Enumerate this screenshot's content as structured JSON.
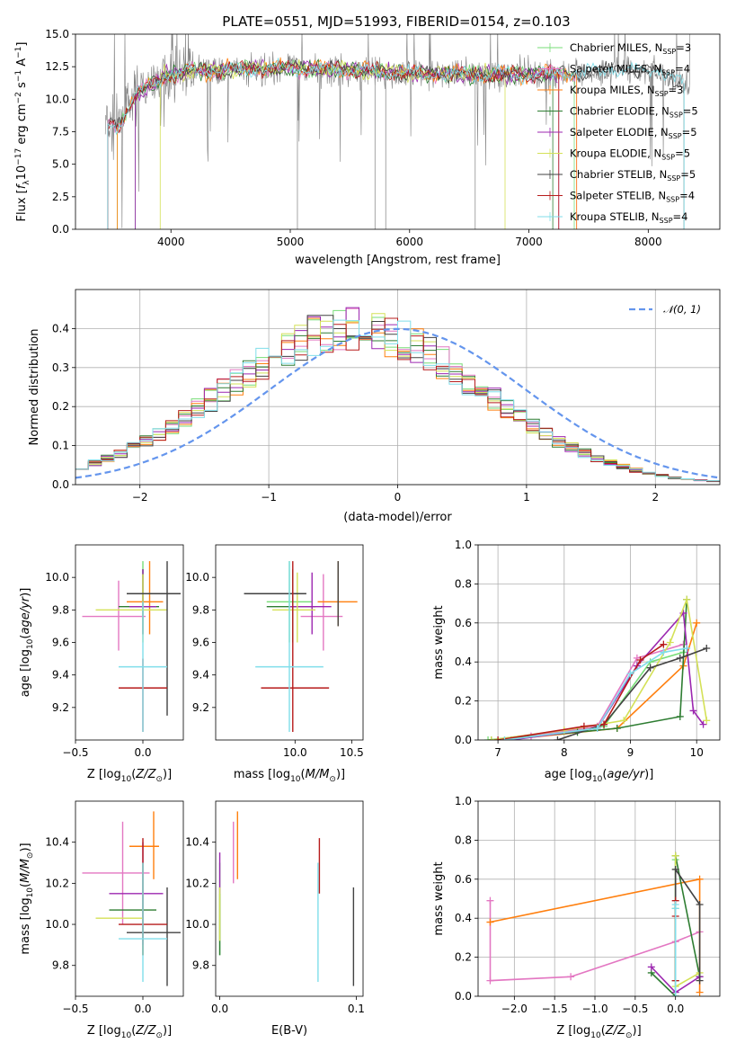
{
  "figure": {
    "title": "PLATE=0551, MJD=51993, FIBERID=0154, z=0.103"
  },
  "models": [
    {
      "label": "Chabrier MILES, N$_{SSP}$=3",
      "text": "Chabrier MILES, N",
      "sub": "SSP",
      "tail": "=3",
      "color": "#77dd77"
    },
    {
      "label": "Salpeter MILES, N$_{SSP}$=4",
      "text": "Salpeter MILES, N",
      "sub": "SSP",
      "tail": "=4",
      "color": "#e377c2"
    },
    {
      "label": "Kroupa MILES, N$_{SSP}$=3",
      "text": "Kroupa MILES, N",
      "sub": "SSP",
      "tail": "=3",
      "color": "#ff7f0e"
    },
    {
      "label": "Chabrier ELODIE, N$_{SSP}$=5",
      "text": "Chabrier ELODIE, N",
      "sub": "SSP",
      "tail": "=5",
      "color": "#2e7d32"
    },
    {
      "label": "Salpeter ELODIE, N$_{SSP}$=5",
      "text": "Salpeter ELODIE, N",
      "sub": "SSP",
      "tail": "=5",
      "color": "#9c27b0"
    },
    {
      "label": "Kroupa ELODIE, N$_{SSP}$=5",
      "text": "Kroupa ELODIE, N",
      "sub": "SSP",
      "tail": "=5",
      "color": "#d4e157"
    },
    {
      "label": "Chabrier STELIB, N$_{SSP}$=5",
      "text": "Chabrier STELIB, N",
      "sub": "SSP",
      "tail": "=5",
      "color": "#424242"
    },
    {
      "label": "Salpeter STELIB, N$_{SSP}$=4",
      "text": "Salpeter STELIB, N",
      "sub": "SSP",
      "tail": "=4",
      "color": "#b71c1c"
    },
    {
      "label": "Kroupa STELIB, N$_{SSP}$=4",
      "text": "Kroupa STELIB, N",
      "sub": "SSP",
      "tail": "=4",
      "color": "#80deea"
    }
  ],
  "chart_data": [
    {
      "id": "spectrum",
      "type": "line",
      "xlabel": "wavelength [Angstrom, rest frame]",
      "ylabel": "Flux [f$_\\lambda$10$^{-17}$ erg cm$^{-2}$ s$^{-1}$ A$^{-1}$]",
      "ylabel_parts": [
        "Flux [",
        "f",
        "λ",
        "10",
        "−17",
        " erg cm",
        "−2",
        " s",
        "−1",
        " A",
        "−1",
        "]"
      ],
      "xlim": [
        3200,
        8600
      ],
      "ylim": [
        0,
        15
      ],
      "xticks": [
        4000,
        5000,
        6000,
        7000,
        8000
      ],
      "yticks": [
        0.0,
        2.5,
        5.0,
        7.5,
        10.0,
        12.5,
        15.0
      ],
      "ytick_labels": [
        "0.0",
        "2.5",
        "5.0",
        "7.5",
        "10.0",
        "12.5",
        "15.0"
      ],
      "legend": "upper right",
      "grid": false,
      "data_color": "#808080",
      "data_x_range": [
        3450,
        8350
      ],
      "continuum": {
        "x": [
          3450,
          3550,
          3700,
          3950,
          4200,
          4600,
          5000,
          5600,
          6000,
          6500,
          7000,
          7400,
          7800,
          8100,
          8350
        ],
        "y": [
          8.2,
          7.8,
          10.3,
          11.8,
          12.2,
          12.3,
          12.4,
          12.2,
          12.0,
          11.9,
          11.9,
          12.0,
          12.3,
          12.1,
          11.0
        ]
      }
    },
    {
      "id": "residuals",
      "type": "histogram",
      "xlabel": "(data-model)/error",
      "ylabel": "Normed distribution",
      "xlim": [
        -2.5,
        2.5
      ],
      "ylim": [
        0,
        0.5
      ],
      "xticks": [
        -2,
        -1,
        0,
        1,
        2
      ],
      "xtick_labels": [
        "−2",
        "−1",
        "0",
        "1",
        "2"
      ],
      "yticks": [
        0.0,
        0.1,
        0.2,
        0.3,
        0.4
      ],
      "ytick_labels": [
        "0.0",
        "0.1",
        "0.2",
        "0.3",
        "0.4"
      ],
      "grid": true,
      "legend_label": "$\\mathcal{N}(0,1)$",
      "legend_text": "𝒩(0, 1)",
      "legend_color": "#6495ed",
      "bin_edges_start": -2.5,
      "bin_width": 0.1,
      "reference_values": [
        0.046,
        0.056,
        0.067,
        0.081,
        0.095,
        0.111,
        0.13,
        0.15,
        0.171,
        0.194,
        0.218,
        0.242,
        0.266,
        0.29,
        0.312,
        0.333,
        0.352,
        0.368,
        0.381,
        0.391,
        0.397,
        0.399,
        0.397,
        0.391,
        0.381,
        0.368,
        0.352,
        0.333,
        0.312,
        0.29,
        0.266,
        0.242,
        0.218,
        0.194,
        0.171,
        0.15,
        0.13,
        0.111,
        0.095,
        0.081,
        0.067,
        0.056,
        0.046,
        0.037,
        0.029,
        0.023,
        0.018,
        0.014,
        0.011,
        0.009
      ]
    },
    {
      "id": "age-vs-z",
      "type": "errorbar",
      "xlabel": "Z [log$_{10}$(Z/Z$_\\odot$)]",
      "xlabel_text": "Z [log",
      "ylabel": "age  [log$_{10}$(age/yr)]",
      "ylabel_text": "age  [log",
      "xlim": [
        -0.5,
        0.3
      ],
      "ylim": [
        9.0,
        10.2
      ],
      "xticks": [
        -0.5,
        0.0
      ],
      "xtick_labels": [
        "−0.5",
        "0.0"
      ],
      "yticks": [
        9.2,
        9.4,
        9.6,
        9.8,
        10.0
      ],
      "ytick_labels": [
        "9.2",
        "9.4",
        "9.6",
        "9.8",
        "10.0"
      ],
      "points": [
        {
          "model": 0,
          "x": 0.0,
          "y": 9.85,
          "xlo": 0.0,
          "xhi": 0.0,
          "ylo": 9.65,
          "yhi": 10.1
        },
        {
          "model": 1,
          "x": -0.18,
          "y": 9.76,
          "xlo": -0.45,
          "xhi": 0.02,
          "ylo": 9.55,
          "yhi": 9.98
        },
        {
          "model": 2,
          "x": 0.05,
          "y": 9.85,
          "xlo": -0.12,
          "xhi": 0.15,
          "ylo": 9.65,
          "yhi": 10.1
        },
        {
          "model": 3,
          "x": 0.0,
          "y": 9.82,
          "xlo": -0.18,
          "xhi": 0.12,
          "ylo": 9.65,
          "yhi": 10.05
        },
        {
          "model": 4,
          "x": 0.0,
          "y": 9.82,
          "xlo": -0.1,
          "xhi": 0.1,
          "ylo": 9.65,
          "yhi": 10.05
        },
        {
          "model": 5,
          "x": 0.0,
          "y": 9.8,
          "xlo": -0.35,
          "xhi": 0.18,
          "ylo": 9.6,
          "yhi": 10.02
        },
        {
          "model": 6,
          "x": 0.18,
          "y": 9.9,
          "xlo": -0.12,
          "xhi": 0.28,
          "ylo": 9.15,
          "yhi": 10.1
        },
        {
          "model": 7,
          "x": 0.0,
          "y": 9.32,
          "xlo": -0.18,
          "xhi": 0.18,
          "ylo": 9.05,
          "yhi": 9.5
        },
        {
          "model": 8,
          "x": 0.0,
          "y": 9.45,
          "xlo": -0.18,
          "xhi": 0.18,
          "ylo": 9.05,
          "yhi": 9.85
        }
      ]
    },
    {
      "id": "age-vs-mass",
      "type": "errorbar",
      "xlabel": "mass [log$_{10}$(M/M$_\\odot$)]",
      "xlabel_text": "mass [log",
      "xlim": [
        9.3,
        10.6
      ],
      "ylim": [
        9.0,
        10.2
      ],
      "xticks": [
        10.0,
        10.5
      ],
      "xtick_labels": [
        "10.0",
        "10.5"
      ],
      "yticks": [
        9.2,
        9.4,
        9.6,
        9.8,
        10.0
      ],
      "ytick_labels": [
        "9.2",
        "9.4",
        "9.6",
        "9.8",
        "10.0"
      ],
      "points": [
        {
          "model": 0,
          "x": 9.95,
          "y": 9.85,
          "xlo": 9.75,
          "xhi": 10.15,
          "ylo": 9.6,
          "yhi": 10.1
        },
        {
          "model": 1,
          "x": 10.25,
          "y": 9.76,
          "xlo": 10.05,
          "xhi": 10.42,
          "ylo": 9.55,
          "yhi": 10.02
        },
        {
          "model": 2,
          "x": 10.38,
          "y": 9.85,
          "xlo": 10.2,
          "xhi": 10.55,
          "ylo": 9.7,
          "yhi": 10.1
        },
        {
          "model": 3,
          "x": 9.98,
          "y": 9.82,
          "xlo": 9.75,
          "xhi": 10.18,
          "ylo": 9.6,
          "yhi": 10.05
        },
        {
          "model": 4,
          "x": 10.15,
          "y": 9.82,
          "xlo": 9.95,
          "xhi": 10.32,
          "ylo": 9.65,
          "yhi": 10.03
        },
        {
          "model": 5,
          "x": 10.02,
          "y": 9.8,
          "xlo": 9.8,
          "xhi": 10.18,
          "ylo": 9.6,
          "yhi": 10.03
        },
        {
          "model": 6,
          "x": 10.38,
          "y": 9.9,
          "xlo": 9.55,
          "xhi": 10.1,
          "ylo": 9.7,
          "yhi": 10.1
        },
        {
          "model": 7,
          "x": 9.98,
          "y": 9.32,
          "xlo": 9.7,
          "xhi": 10.3,
          "ylo": 9.05,
          "yhi": 10.1
        },
        {
          "model": 8,
          "x": 9.95,
          "y": 9.45,
          "xlo": 9.65,
          "xhi": 10.25,
          "ylo": 9.05,
          "yhi": 10.1
        }
      ]
    },
    {
      "id": "weight-vs-age",
      "type": "line",
      "xlabel": "age  [log$_{10}$(age/yr)]",
      "xlabel_text": "age  [log",
      "ylabel": "mass weight",
      "xlim": [
        6.7,
        10.35
      ],
      "ylim": [
        0,
        1.0
      ],
      "xticks": [
        7,
        8,
        9,
        10
      ],
      "xtick_labels": [
        "7",
        "8",
        "9",
        "10"
      ],
      "yticks": [
        0.0,
        0.2,
        0.4,
        0.6,
        0.8,
        1.0
      ],
      "ytick_labels": [
        "0.0",
        "0.2",
        "0.4",
        "0.6",
        "0.8",
        "1.0"
      ],
      "grid": true,
      "series": [
        {
          "model": 0,
          "x": [
            6.85,
            8.6,
            9.3,
            9.8
          ],
          "y": [
            0.0,
            0.07,
            0.4,
            0.45
          ]
        },
        {
          "model": 1,
          "x": [
            7.5,
            8.5,
            9.1,
            9.8
          ],
          "y": [
            0.02,
            0.07,
            0.42,
            0.49
          ]
        },
        {
          "model": 2,
          "x": [
            7.1,
            8.8,
            9.8,
            10.0
          ],
          "y": [
            0.0,
            0.06,
            0.38,
            0.6
          ]
        },
        {
          "model": 3,
          "x": [
            6.9,
            8.2,
            8.8,
            9.75,
            9.85
          ],
          "y": [
            0.0,
            0.04,
            0.06,
            0.12,
            0.72
          ]
        },
        {
          "model": 4,
          "x": [
            7.2,
            8.5,
            9.1,
            9.8,
            9.95,
            10.1
          ],
          "y": [
            0.0,
            0.06,
            0.38,
            0.65,
            0.15,
            0.08
          ]
        },
        {
          "model": 5,
          "x": [
            6.9,
            8.0,
            8.9,
            9.6,
            9.85,
            10.15
          ],
          "y": [
            0.0,
            0.05,
            0.1,
            0.5,
            0.72,
            0.1
          ]
        },
        {
          "model": 6,
          "x": [
            7.9,
            8.6,
            9.3,
            9.75,
            10.15
          ],
          "y": [
            0.0,
            0.08,
            0.37,
            0.42,
            0.47
          ]
        },
        {
          "model": 7,
          "x": [
            7.0,
            8.3,
            8.6,
            9.15,
            9.5
          ],
          "y": [
            0.0,
            0.07,
            0.08,
            0.41,
            0.49
          ]
        },
        {
          "model": 8,
          "x": [
            7.1,
            8.5,
            9.0,
            9.5,
            9.85
          ],
          "y": [
            0.0,
            0.06,
            0.34,
            0.45,
            0.47
          ]
        }
      ]
    },
    {
      "id": "mass-vs-z",
      "type": "errorbar",
      "xlabel": "Z [log$_{10}$(Z/Z$_\\odot$)]",
      "xlabel_text": "Z [log",
      "ylabel": "mass [log$_{10}$(M/M$_\\odot$)]",
      "ylabel_text": "mass [log",
      "xlim": [
        -0.5,
        0.3
      ],
      "ylim": [
        9.65,
        10.6
      ],
      "xticks": [
        -0.5,
        0.0
      ],
      "xtick_labels": [
        "−0.5",
        "0.0"
      ],
      "yticks": [
        9.8,
        10.0,
        10.2,
        10.4
      ],
      "ytick_labels": [
        "9.8",
        "10.0",
        "10.2",
        "10.4"
      ],
      "points": [
        {
          "model": 0,
          "x": 0.0,
          "y": 10.0,
          "xlo": 0.0,
          "xhi": 0.0,
          "ylo": 9.85,
          "yhi": 10.3
        },
        {
          "model": 1,
          "x": -0.15,
          "y": 10.25,
          "xlo": -0.45,
          "xhi": 0.05,
          "ylo": 10.0,
          "yhi": 10.5
        },
        {
          "model": 2,
          "x": 0.08,
          "y": 10.38,
          "xlo": -0.1,
          "xhi": 0.12,
          "ylo": 10.22,
          "yhi": 10.55
        },
        {
          "model": 3,
          "x": 0.0,
          "y": 10.07,
          "xlo": -0.25,
          "xhi": 0.1,
          "ylo": 9.85,
          "yhi": 10.3
        },
        {
          "model": 4,
          "x": 0.0,
          "y": 10.15,
          "xlo": -0.25,
          "xhi": 0.15,
          "ylo": 9.9,
          "yhi": 10.4
        },
        {
          "model": 5,
          "x": 0.0,
          "y": 10.03,
          "xlo": -0.35,
          "xhi": 0.0,
          "ylo": 9.85,
          "yhi": 10.3
        },
        {
          "model": 6,
          "x": 0.18,
          "y": 9.96,
          "xlo": -0.12,
          "xhi": 0.28,
          "ylo": 9.7,
          "yhi": 10.18
        },
        {
          "model": 7,
          "x": 0.0,
          "y": 10.0,
          "xlo": -0.18,
          "xhi": 0.18,
          "ylo": 9.85,
          "yhi": 10.42
        },
        {
          "model": 8,
          "x": 0.0,
          "y": 9.93,
          "xlo": -0.18,
          "xhi": 0.18,
          "ylo": 9.72,
          "yhi": 10.3
        }
      ]
    },
    {
      "id": "mass-vs-ebv",
      "type": "errorbar",
      "xlabel": "E(B-V)",
      "xlim": [
        -0.003,
        0.105
      ],
      "ylim": [
        9.65,
        10.6
      ],
      "xticks": [
        0.0,
        0.1
      ],
      "xtick_labels": [
        "0.0",
        "0.1"
      ],
      "yticks": [
        9.8,
        10.0,
        10.2,
        10.4
      ],
      "ytick_labels": [
        "9.8",
        "10.0",
        "10.2",
        "10.4"
      ],
      "points": [
        {
          "model": 0,
          "x": 0.0,
          "y": 10.0,
          "xlo": 0.0,
          "xhi": 0.0,
          "ylo": 9.85,
          "yhi": 10.3
        },
        {
          "model": 1,
          "x": 0.01,
          "y": 10.35,
          "xlo": 0.01,
          "xhi": 0.01,
          "ylo": 10.2,
          "yhi": 10.5
        },
        {
          "model": 2,
          "x": 0.013,
          "y": 10.38,
          "xlo": 0.013,
          "xhi": 0.013,
          "ylo": 10.22,
          "yhi": 10.55
        },
        {
          "model": 3,
          "x": 0.0,
          "y": 10.0,
          "xlo": 0.0,
          "xhi": 0.0,
          "ylo": 9.85,
          "yhi": 10.15
        },
        {
          "model": 4,
          "x": 0.0,
          "y": 10.25,
          "xlo": 0.0,
          "xhi": 0.0,
          "ylo": 10.15,
          "yhi": 10.35
        },
        {
          "model": 5,
          "x": 0.0,
          "y": 10.05,
          "xlo": 0.0,
          "xhi": 0.0,
          "ylo": 9.92,
          "yhi": 10.18
        },
        {
          "model": 6,
          "x": 0.098,
          "y": 9.95,
          "xlo": 0.098,
          "xhi": 0.098,
          "ylo": 9.7,
          "yhi": 10.18
        },
        {
          "model": 7,
          "x": 0.073,
          "y": 10.3,
          "xlo": 0.073,
          "xhi": 0.073,
          "ylo": 10.15,
          "yhi": 10.42
        },
        {
          "model": 8,
          "x": 0.072,
          "y": 10.0,
          "xlo": 0.072,
          "xhi": 0.072,
          "ylo": 9.72,
          "yhi": 10.3
        }
      ]
    },
    {
      "id": "weight-vs-z",
      "type": "line",
      "xlabel": "Z [log$_{10}$(Z/Z$_\\odot$)]",
      "xlabel_text": "Z [log",
      "ylabel": "mass weight",
      "xlim": [
        -2.45,
        0.55
      ],
      "ylim": [
        0,
        1.0
      ],
      "xticks": [
        -2.0,
        -1.5,
        -1.0,
        -0.5,
        0.0
      ],
      "xtick_labels": [
        "−2.0",
        "−1.5",
        "−1.0",
        "−0.5",
        "0.0"
      ],
      "yticks": [
        0.0,
        0.2,
        0.4,
        0.6,
        0.8,
        1.0
      ],
      "ytick_labels": [
        "0.0",
        "0.2",
        "0.4",
        "0.6",
        "0.8",
        "1.0"
      ],
      "grid": true,
      "series": [
        {
          "model": 0,
          "x": [
            0.0,
            0.0,
            0.0
          ],
          "y": [
            0.0,
            0.45,
            0.7
          ]
        },
        {
          "model": 1,
          "x": [
            -2.3,
            -2.3,
            -1.3,
            0.0,
            0.3
          ],
          "y": [
            0.49,
            0.08,
            0.1,
            0.28,
            0.33
          ]
        },
        {
          "model": 2,
          "x": [
            -2.3,
            0.3,
            0.3
          ],
          "y": [
            0.38,
            0.6,
            0.02
          ]
        },
        {
          "model": 3,
          "x": [
            -0.3,
            0.0,
            0.0,
            0.3
          ],
          "y": [
            0.12,
            0.0,
            0.72,
            0.1
          ]
        },
        {
          "model": 4,
          "x": [
            -0.3,
            0.0,
            0.3
          ],
          "y": [
            0.15,
            0.02,
            0.1
          ]
        },
        {
          "model": 5,
          "x": [
            0.0,
            0.0,
            0.3
          ],
          "y": [
            0.72,
            0.05,
            0.12
          ]
        },
        {
          "model": 6,
          "x": [
            0.0,
            0.0,
            0.3,
            0.3
          ],
          "y": [
            0.08,
            0.65,
            0.47,
            0.08
          ]
        },
        {
          "model": 7,
          "x": [
            0.0,
            0.0,
            0.0
          ],
          "y": [
            0.08,
            0.41,
            0.49
          ]
        },
        {
          "model": 8,
          "x": [
            0.0,
            0.0,
            0.0
          ],
          "y": [
            0.0,
            0.45,
            0.47
          ]
        }
      ]
    }
  ]
}
